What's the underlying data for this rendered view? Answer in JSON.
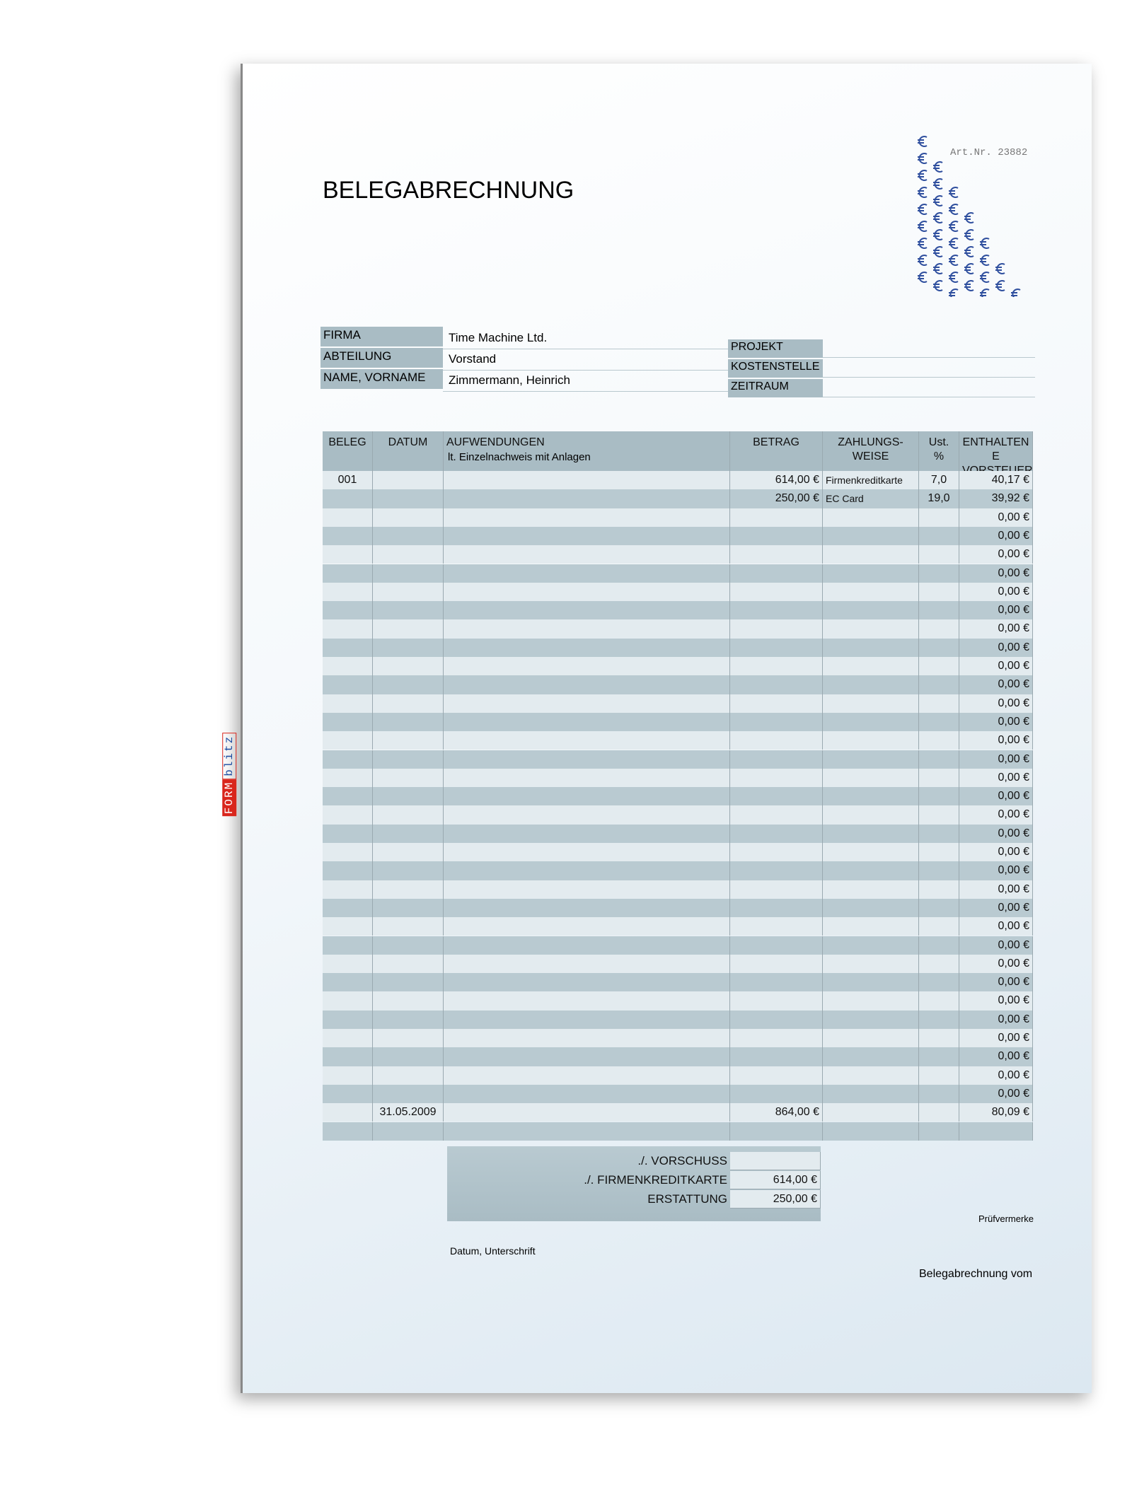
{
  "header": {
    "title": "BELEGABRECHNUNG",
    "art_nr": "Art.Nr. 23882"
  },
  "logo": [
    "FORM",
    "blitz"
  ],
  "info": {
    "left": [
      {
        "label": "FIRMA",
        "value": "Time Machine Ltd."
      },
      {
        "label": "ABTEILUNG",
        "value": "Vorstand"
      },
      {
        "label": "NAME, VORNAME",
        "value": "Zimmermann, Heinrich"
      }
    ],
    "right": [
      {
        "label": "PROJEKT"
      },
      {
        "label": "KOSTENSTELLE"
      },
      {
        "label": "ZEITRAUM"
      }
    ]
  },
  "table": {
    "columns": [
      "BELEG",
      "DATUM",
      "AUFWENDUNGEN",
      "BETRAG",
      "ZAHLUNGS-\nWEISE",
      "Ust.\n%",
      "ENTHALTEN\nE\nVORSTEUER"
    ],
    "column_note": "lt. Einzelnachweis mit Anlagen",
    "rows": [
      [
        "001",
        null,
        null,
        "614,00 €",
        "Firmenkreditkarte",
        "7,0",
        "40,17 €"
      ],
      [
        null,
        null,
        null,
        "250,00 €",
        "EC Card",
        "19,0",
        "39,92 €"
      ],
      [
        null,
        null,
        null,
        null,
        null,
        null,
        "0,00 €"
      ],
      [
        null,
        null,
        null,
        null,
        null,
        null,
        "0,00 €"
      ],
      [
        null,
        null,
        null,
        null,
        null,
        null,
        "0,00 €"
      ],
      [
        null,
        null,
        null,
        null,
        null,
        null,
        "0,00 €"
      ],
      [
        null,
        null,
        null,
        null,
        null,
        null,
        "0,00 €"
      ],
      [
        null,
        null,
        null,
        null,
        null,
        null,
        "0,00 €"
      ],
      [
        null,
        null,
        null,
        null,
        null,
        null,
        "0,00 €"
      ],
      [
        null,
        null,
        null,
        null,
        null,
        null,
        "0,00 €"
      ],
      [
        null,
        null,
        null,
        null,
        null,
        null,
        "0,00 €"
      ],
      [
        null,
        null,
        null,
        null,
        null,
        null,
        "0,00 €"
      ],
      [
        null,
        null,
        null,
        null,
        null,
        null,
        "0,00 €"
      ],
      [
        null,
        null,
        null,
        null,
        null,
        null,
        "0,00 €"
      ],
      [
        null,
        null,
        null,
        null,
        null,
        null,
        "0,00 €"
      ],
      [
        null,
        null,
        null,
        null,
        null,
        null,
        "0,00 €"
      ],
      [
        null,
        null,
        null,
        null,
        null,
        null,
        "0,00 €"
      ],
      [
        null,
        null,
        null,
        null,
        null,
        null,
        "0,00 €"
      ],
      [
        null,
        null,
        null,
        null,
        null,
        null,
        "0,00 €"
      ],
      [
        null,
        null,
        null,
        null,
        null,
        null,
        "0,00 €"
      ],
      [
        null,
        null,
        null,
        null,
        null,
        null,
        "0,00 €"
      ],
      [
        null,
        null,
        null,
        null,
        null,
        null,
        "0,00 €"
      ],
      [
        null,
        null,
        null,
        null,
        null,
        null,
        "0,00 €"
      ],
      [
        null,
        null,
        null,
        null,
        null,
        null,
        "0,00 €"
      ],
      [
        null,
        null,
        null,
        null,
        null,
        null,
        "0,00 €"
      ],
      [
        null,
        null,
        null,
        null,
        null,
        null,
        "0,00 €"
      ],
      [
        null,
        null,
        null,
        null,
        null,
        null,
        "0,00 €"
      ],
      [
        null,
        null,
        null,
        null,
        null,
        null,
        "0,00 €"
      ],
      [
        null,
        null,
        null,
        null,
        null,
        null,
        "0,00 €"
      ],
      [
        null,
        null,
        null,
        null,
        null,
        null,
        "0,00 €"
      ],
      [
        null,
        null,
        null,
        null,
        null,
        null,
        "0,00 €"
      ],
      [
        null,
        null,
        null,
        null,
        null,
        null,
        "0,00 €"
      ],
      [
        null,
        null,
        null,
        null,
        null,
        null,
        "0,00 €"
      ],
      [
        null,
        null,
        null,
        null,
        null,
        null,
        "0,00 €"
      ],
      [
        null,
        "31.05.2009",
        null,
        "864,00 €",
        null,
        null,
        "80,09 €"
      ]
    ]
  },
  "summary": [
    {
      "label": "./. VORSCHUSS",
      "value": null
    },
    {
      "label": "./. FIRMENKREDITKARTE",
      "value": "614,00 €"
    },
    {
      "label": "ERSTATTUNG",
      "value": "250,00 €"
    }
  ],
  "footer": {
    "pruefvermerke": "Prüfvermerke",
    "datum_unterschrift": "Datum, Unterschrift",
    "belegabrechnung_vom": "Belegabrechnung vom"
  }
}
